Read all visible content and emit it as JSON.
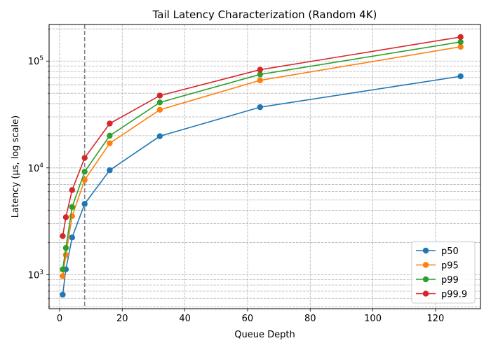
{
  "chart_data": {
    "type": "line",
    "title": "Tail Latency Characterization (Random 4K)",
    "xlabel": "Queue Depth",
    "ylabel": "Latency (µs, log scale)",
    "xscale": "linear",
    "yscale": "log",
    "xlim": [
      -3.35,
      134.35
    ],
    "ylim": [
      480,
      220000
    ],
    "x_ticks": [
      0,
      20,
      40,
      60,
      80,
      100,
      120
    ],
    "x_tick_labels": [
      "0",
      "20",
      "40",
      "60",
      "80",
      "100",
      "120"
    ],
    "y_major_ticks": [
      1000,
      10000,
      100000
    ],
    "y_tick_labels": [
      {
        "base": "10",
        "exp": "3"
      },
      {
        "base": "10",
        "exp": "4"
      },
      {
        "base": "10",
        "exp": "5"
      }
    ],
    "grid": "both (major and minor), dashed",
    "reference_line": {
      "x": 8,
      "style": "dashed",
      "color": "#808080"
    },
    "legend_position": "lower-right",
    "x": [
      1,
      2,
      4,
      8,
      16,
      32,
      64,
      128
    ],
    "series": [
      {
        "name": "p50",
        "color": "#1f77b4",
        "values": [
          650,
          1120,
          2230,
          4600,
          9500,
          19800,
          37000,
          72000
        ]
      },
      {
        "name": "p95",
        "color": "#ff7f0e",
        "values": [
          970,
          1530,
          3530,
          7700,
          17000,
          35000,
          66000,
          136000
        ]
      },
      {
        "name": "p99",
        "color": "#2ca02c",
        "values": [
          1120,
          1780,
          4300,
          9200,
          20000,
          41000,
          75000,
          151000
        ]
      },
      {
        "name": "p99.9",
        "color": "#d62728",
        "values": [
          2300,
          3450,
          6200,
          12400,
          26000,
          47500,
          83000,
          168000
        ]
      }
    ]
  }
}
